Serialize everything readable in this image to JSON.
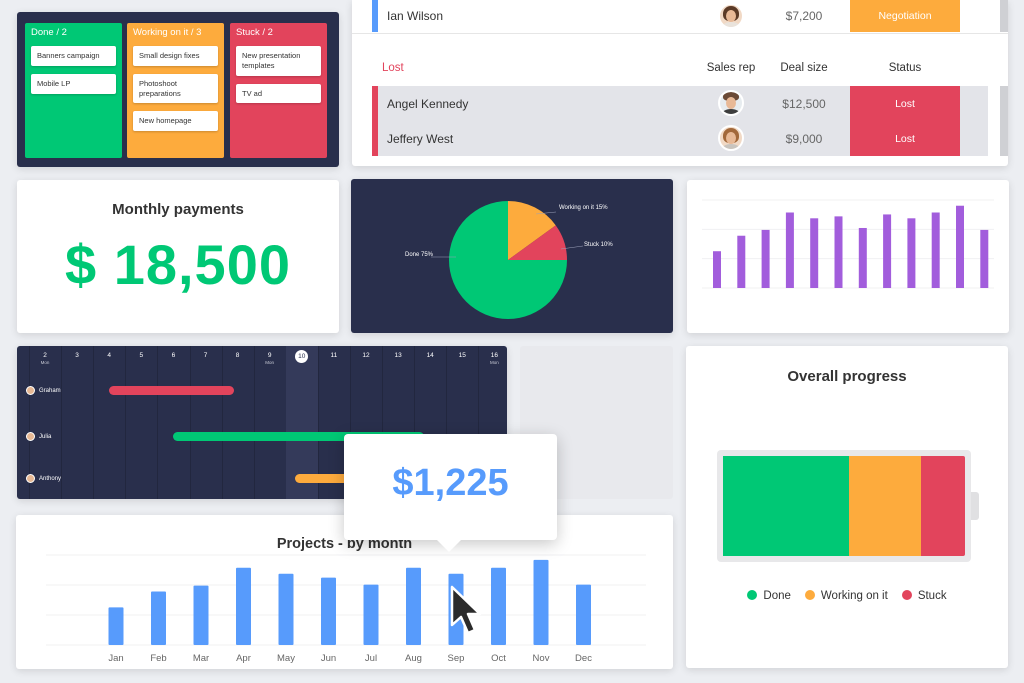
{
  "kanban": {
    "columns": [
      {
        "title": "Done / 2",
        "color": "#00c875",
        "items": [
          "Banners campaign",
          "Mobile LP"
        ]
      },
      {
        "title": "Working on it / 3",
        "color": "#fdab3d",
        "items": [
          "Small design fixes",
          "Photoshoot preparations",
          "New homepage"
        ]
      },
      {
        "title": "Stuck / 2",
        "color": "#e2445c",
        "items": [
          "New presentation templates",
          "TV ad"
        ]
      }
    ]
  },
  "deals": {
    "top_row": {
      "name": "Ian Wilson",
      "size": "$7,200",
      "status": "Negotiation",
      "status_color": "#fdab3d"
    },
    "group_title": "Lost",
    "columns": {
      "rep": "Sales rep",
      "size": "Deal size",
      "status": "Status"
    },
    "rows": [
      {
        "name": "Angel Kennedy",
        "size": "$12,500",
        "status": "Lost"
      },
      {
        "name": "Jeffery West",
        "size": "$9,000",
        "status": "Lost"
      }
    ],
    "lost_color": "#e2445c"
  },
  "monthly": {
    "title": "Monthly payments",
    "value": "$ 18,500"
  },
  "pie": {
    "chart_data": {
      "type": "pie",
      "slices": [
        {
          "label": "Working on it 15%",
          "value": 15,
          "color": "#fdab3d"
        },
        {
          "label": "Stuck 10%",
          "value": 10,
          "color": "#e2445c"
        },
        {
          "label": "Done 75%",
          "value": 75,
          "color": "#00c875"
        }
      ]
    }
  },
  "purple": {
    "chart_data": {
      "type": "bar",
      "values": [
        38,
        54,
        60,
        78,
        72,
        74,
        62,
        76,
        72,
        78,
        85,
        60
      ],
      "ylim": [
        0,
        100
      ],
      "color": "#a25ddc"
    }
  },
  "gantt": {
    "days": [
      {
        "d": "2",
        "sub": "Mon"
      },
      {
        "d": "3",
        "sub": ""
      },
      {
        "d": "4",
        "sub": ""
      },
      {
        "d": "5",
        "sub": ""
      },
      {
        "d": "6",
        "sub": ""
      },
      {
        "d": "7",
        "sub": ""
      },
      {
        "d": "8",
        "sub": ""
      },
      {
        "d": "9",
        "sub": "Mon"
      },
      {
        "d": "10",
        "sub": ""
      },
      {
        "d": "11",
        "sub": ""
      },
      {
        "d": "12",
        "sub": ""
      },
      {
        "d": "13",
        "sub": ""
      },
      {
        "d": "14",
        "sub": ""
      },
      {
        "d": "15",
        "sub": ""
      },
      {
        "d": "16",
        "sub": "Mon"
      }
    ],
    "today": "10",
    "people": [
      {
        "name": "Graham",
        "color": "#e2445c",
        "start": 2.5,
        "end": 6.4
      },
      {
        "name": "Julia",
        "color": "#00c875",
        "start": 4.5,
        "end": 12.3
      },
      {
        "name": "Anthony",
        "color": "#fdab3d",
        "start": 8.3,
        "end": 11.0
      }
    ]
  },
  "overall": {
    "title": "Overall progress",
    "segments": [
      {
        "label": "Done",
        "pct": 52,
        "color": "#00c875"
      },
      {
        "label": "Working on it",
        "pct": 30,
        "color": "#fdab3d"
      },
      {
        "label": "Stuck",
        "pct": 18,
        "color": "#e2445c"
      }
    ]
  },
  "projects": {
    "title": "Projects - by month",
    "chart_data": {
      "type": "bar",
      "categories": [
        "Jan",
        "Feb",
        "Mar",
        "Apr",
        "May",
        "Jun",
        "Jul",
        "Aug",
        "Sep",
        "Oct",
        "Nov",
        "Dec"
      ],
      "values": [
        38,
        54,
        60,
        78,
        72,
        68,
        61,
        78,
        72,
        78,
        86,
        61
      ],
      "ylim": [
        0,
        100
      ],
      "color": "#579bfc"
    }
  },
  "tooltip": {
    "value": "$1,225"
  }
}
